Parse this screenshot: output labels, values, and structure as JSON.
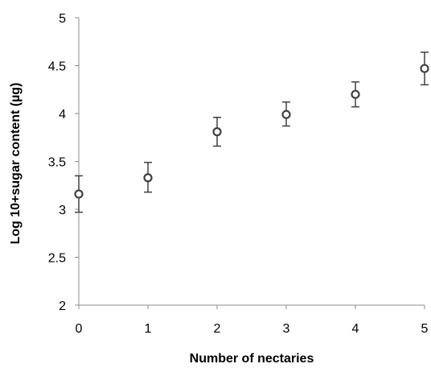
{
  "chart_data": {
    "type": "scatter",
    "title": "",
    "xlabel": "Number of nectaries",
    "ylabel": "Log 10+sugar content (µg)",
    "xlim": [
      0,
      5
    ],
    "ylim": [
      2,
      5
    ],
    "x_ticks": [
      "0",
      "1",
      "2",
      "3",
      "4",
      "5"
    ],
    "y_ticks": [
      "2",
      "2.5",
      "3",
      "3.5",
      "4",
      "4.5",
      "5"
    ],
    "grid": false,
    "legend": "none",
    "series": [
      {
        "marker": "open-circle",
        "color": "#404040",
        "points": [
          {
            "x": 0,
            "y": 3.16,
            "err_low": 2.97,
            "err_high": 3.35
          },
          {
            "x": 1,
            "y": 3.33,
            "err_low": 3.18,
            "err_high": 3.49
          },
          {
            "x": 2,
            "y": 3.81,
            "err_low": 3.66,
            "err_high": 3.96
          },
          {
            "x": 3,
            "y": 3.99,
            "err_low": 3.87,
            "err_high": 4.12
          },
          {
            "x": 4,
            "y": 4.2,
            "err_low": 4.07,
            "err_high": 4.33
          },
          {
            "x": 5,
            "y": 4.47,
            "err_low": 4.3,
            "err_high": 4.64
          }
        ]
      }
    ]
  }
}
